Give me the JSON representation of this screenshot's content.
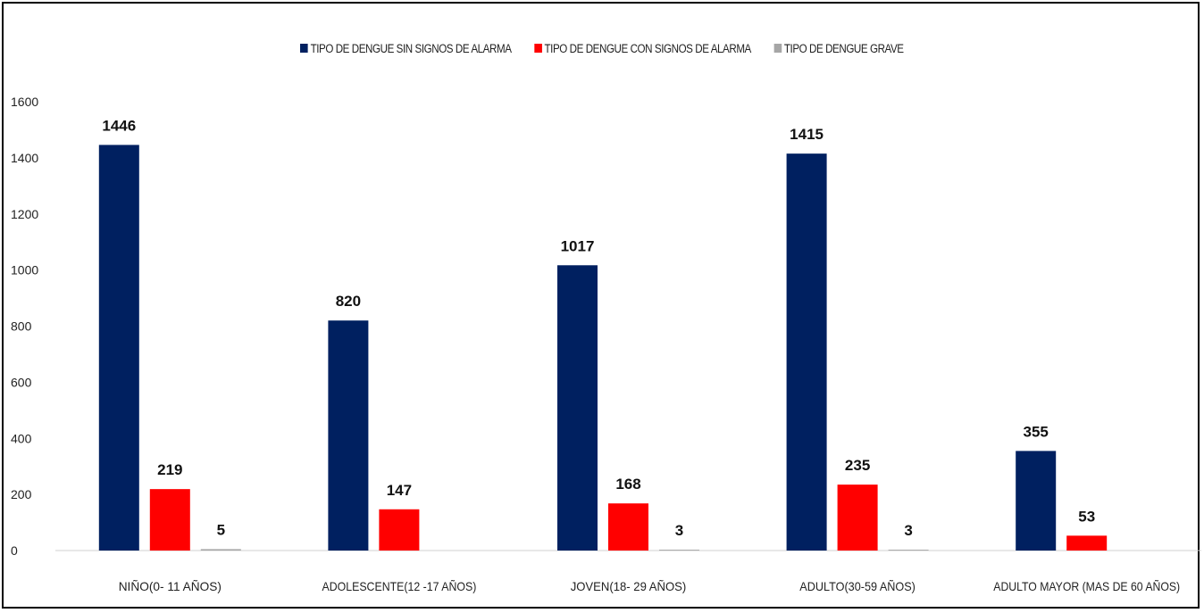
{
  "chart_data": {
    "type": "bar",
    "categories": [
      "NIÑO(0- 11 AÑOS)",
      "ADOLESCENTE(12 -17 AÑOS)",
      "JOVEN(18- 29 AÑOS)",
      "ADULTO(30-59 AÑOS)",
      "ADULTO MAYOR (MAS DE 60 AÑOS)"
    ],
    "series": [
      {
        "name": "TIPO DE  DENGUE SIN SIGNOS DE ALARMA",
        "color": "#002060",
        "values": [
          1446,
          820,
          1017,
          1415,
          355
        ],
        "labels": [
          "1446",
          "820",
          "1017",
          "1415",
          "355"
        ]
      },
      {
        "name": "TIPO DE  DENGUE CON SIGNOS DE ALARMA",
        "color": "#ff0000",
        "values": [
          219,
          147,
          168,
          235,
          53
        ],
        "labels": [
          "219",
          "147",
          "168",
          "235",
          "53"
        ]
      },
      {
        "name": "TIPO DE  DENGUE GRAVE",
        "color": "#a6a6a6",
        "values": [
          5,
          0,
          3,
          3,
          0
        ],
        "labels": [
          "5",
          "",
          "3",
          "3",
          ""
        ]
      }
    ],
    "yticks": [
      "0",
      "200",
      "400",
      "600",
      "800",
      "1000",
      "1200",
      "1400",
      "1600"
    ],
    "ylim": [
      0,
      1600
    ],
    "grid": false,
    "legend_position": "top"
  }
}
